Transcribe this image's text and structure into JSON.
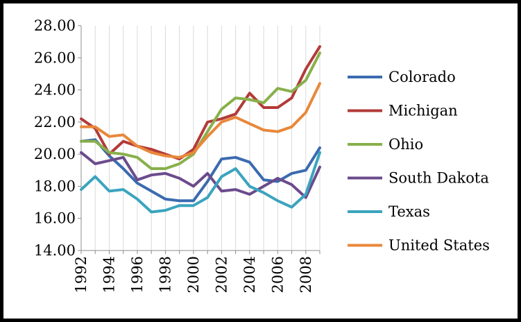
{
  "chart_data": {
    "type": "line",
    "title": "",
    "xlabel": "",
    "ylabel": "",
    "ylim": [
      14,
      28
    ],
    "yticks": [
      "14.00",
      "16.00",
      "18.00",
      "20.00",
      "22.00",
      "24.00",
      "26.00",
      "28.00"
    ],
    "xlim": [
      1992,
      2009
    ],
    "xticks": [
      "1992",
      "1994",
      "1996",
      "1998",
      "2000",
      "2002",
      "2004",
      "2006",
      "2008"
    ],
    "grid": "vertical",
    "legend_position": "right",
    "x": [
      1992,
      1993,
      1994,
      1995,
      1996,
      1997,
      1998,
      1999,
      2000,
      2001,
      2002,
      2003,
      2004,
      2005,
      2006,
      2007,
      2008,
      2009
    ],
    "series": [
      {
        "name": "Colorado",
        "color": "#3b6bb0",
        "values": [
          20.8,
          20.9,
          19.9,
          19.1,
          18.2,
          17.7,
          17.2,
          17.1,
          17.1,
          18.3,
          19.7,
          19.8,
          19.5,
          18.4,
          18.3,
          18.8,
          19.0,
          20.4
        ]
      },
      {
        "name": "Michigan",
        "color": "#b23b38",
        "values": [
          22.2,
          21.6,
          20.0,
          20.8,
          20.5,
          20.3,
          20.0,
          19.7,
          20.3,
          22.0,
          22.2,
          22.5,
          23.8,
          22.9,
          22.9,
          23.5,
          25.3,
          26.7
        ]
      },
      {
        "name": "Ohio",
        "color": "#88b04b",
        "values": [
          20.8,
          20.8,
          20.1,
          20.0,
          19.8,
          19.1,
          19.1,
          19.4,
          20.0,
          21.4,
          22.8,
          23.5,
          23.4,
          23.2,
          24.1,
          23.9,
          24.6,
          26.3
        ]
      },
      {
        "name": "South Dakota",
        "color": "#6b4b8c",
        "values": [
          20.1,
          19.4,
          19.6,
          19.8,
          18.4,
          18.7,
          18.8,
          18.5,
          18.0,
          18.8,
          17.7,
          17.8,
          17.5,
          18.0,
          18.5,
          18.1,
          17.3,
          19.2
        ]
      },
      {
        "name": "Texas",
        "color": "#3ba4be",
        "values": [
          17.8,
          18.6,
          17.7,
          17.8,
          17.2,
          16.4,
          16.5,
          16.8,
          16.8,
          17.3,
          18.6,
          19.1,
          18.0,
          17.6,
          17.1,
          16.7,
          17.5,
          20.1
        ]
      },
      {
        "name": "United States",
        "color": "#e8883a",
        "values": [
          21.7,
          21.7,
          21.1,
          21.2,
          20.5,
          20.1,
          19.9,
          19.8,
          20.1,
          21.1,
          22.0,
          22.3,
          21.9,
          21.5,
          21.4,
          21.7,
          22.6,
          24.4
        ]
      }
    ]
  }
}
